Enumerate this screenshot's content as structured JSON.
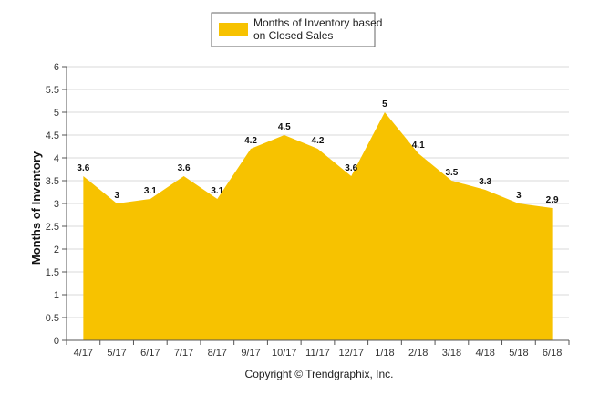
{
  "chart_data": {
    "type": "area",
    "categories": [
      "4/17",
      "5/17",
      "6/17",
      "7/17",
      "8/17",
      "9/17",
      "10/17",
      "11/17",
      "12/17",
      "1/18",
      "2/18",
      "3/18",
      "4/18",
      "5/18",
      "6/18"
    ],
    "series": [
      {
        "name": "Months of Inventory based on Closed Sales",
        "values": [
          3.6,
          3,
          3.1,
          3.6,
          3.1,
          4.2,
          4.5,
          4.2,
          3.6,
          5,
          4.1,
          3.5,
          3.3,
          3,
          2.9
        ],
        "labels": [
          "3.6",
          "3",
          "3.1",
          "3.6",
          "3.1",
          "4.2",
          "4.5",
          "4.2",
          "3.6",
          "5",
          "4.1",
          "3.5",
          "3.3",
          "3",
          "2.9"
        ],
        "color": "#F7C200"
      }
    ],
    "ylabel": "Months of Inventory",
    "ylim": [
      0,
      6
    ],
    "yticks": [
      "0",
      "0.5",
      "1",
      "1.5",
      "2",
      "2.5",
      "3",
      "3.5",
      "4",
      "4.5",
      "5",
      "5.5",
      "6"
    ],
    "grid": true,
    "legend_position": "top-center",
    "legend_lines": [
      "Months of Inventory based",
      "on Closed Sales"
    ]
  },
  "footer": {
    "copyright": "Copyright © Trendgraphix, Inc."
  },
  "colors": {
    "grid": "#d9d9d9",
    "axis": "#555555"
  }
}
